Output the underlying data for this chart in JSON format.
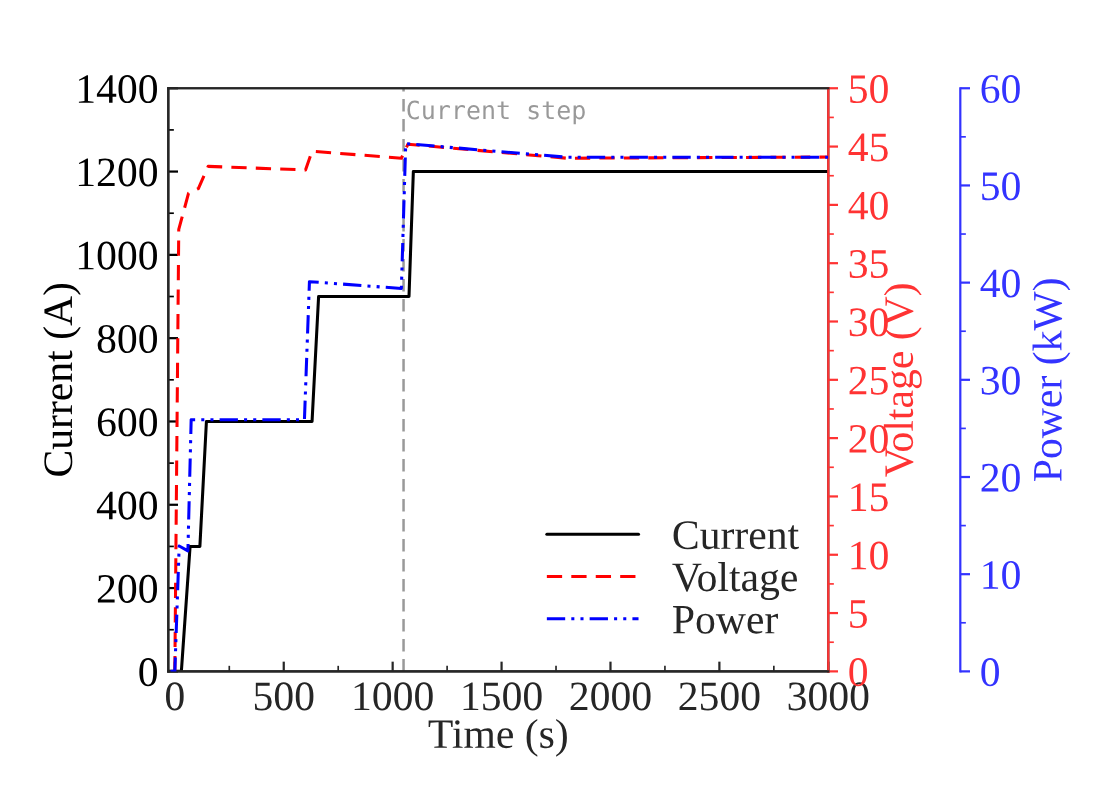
{
  "chart_data": {
    "type": "line",
    "xlabel": "Time (s)",
    "ylabel": "Current (A)",
    "y2label": "Voltage (V)",
    "y3label": "Power (kW)",
    "xlim": [
      -30,
      3000
    ],
    "xticks": [
      0,
      500,
      1000,
      1500,
      2000,
      2500,
      3000
    ],
    "ylim": [
      0,
      1400
    ],
    "yticks": [
      0,
      200,
      400,
      600,
      800,
      1000,
      1200,
      1400
    ],
    "y2lim": [
      0,
      50
    ],
    "y2ticks": [
      0,
      5,
      10,
      15,
      20,
      25,
      30,
      35,
      40,
      45,
      50
    ],
    "y3lim": [
      0,
      60
    ],
    "y3ticks": [
      0,
      10,
      20,
      30,
      40,
      50,
      60
    ],
    "grid": false,
    "legend": "bottom right",
    "ref_lines": [
      {
        "axis": "x",
        "value": 1050,
        "label": "Current step",
        "color": "#999999",
        "line_style": "dashed"
      }
    ],
    "series": [
      {
        "name": "Current",
        "color": "#000000",
        "line_style": "solid",
        "x": [
          -30,
          30,
          70,
          115,
          145,
          630,
          660,
          1075,
          1095,
          3000
        ],
        "values": [
          0,
          0,
          300,
          300,
          600,
          600,
          900,
          900,
          1200,
          1200
        ]
      },
      {
        "name": "Voltage",
        "color": "#ff0000",
        "line_style": "dashed",
        "axis": "y2",
        "x": [
          0,
          18,
          63,
          108,
          153,
          600,
          630,
          1040,
          1070,
          1800,
          3000
        ],
        "values": [
          0,
          37.9,
          41,
          41.4,
          43.3,
          43,
          44.6,
          44,
          45.2,
          44,
          44.1
        ]
      },
      {
        "name": "Power",
        "color": "#0000ff",
        "line_style": "dashdot",
        "axis": "y3",
        "x": [
          -20,
          0,
          20,
          60,
          75,
          595,
          618,
          1040,
          1060,
          1800,
          3000
        ],
        "values": [
          0,
          0,
          12.9,
          12.4,
          25.9,
          25.9,
          40.1,
          39.4,
          54.3,
          52.9,
          52.9
        ]
      }
    ]
  }
}
